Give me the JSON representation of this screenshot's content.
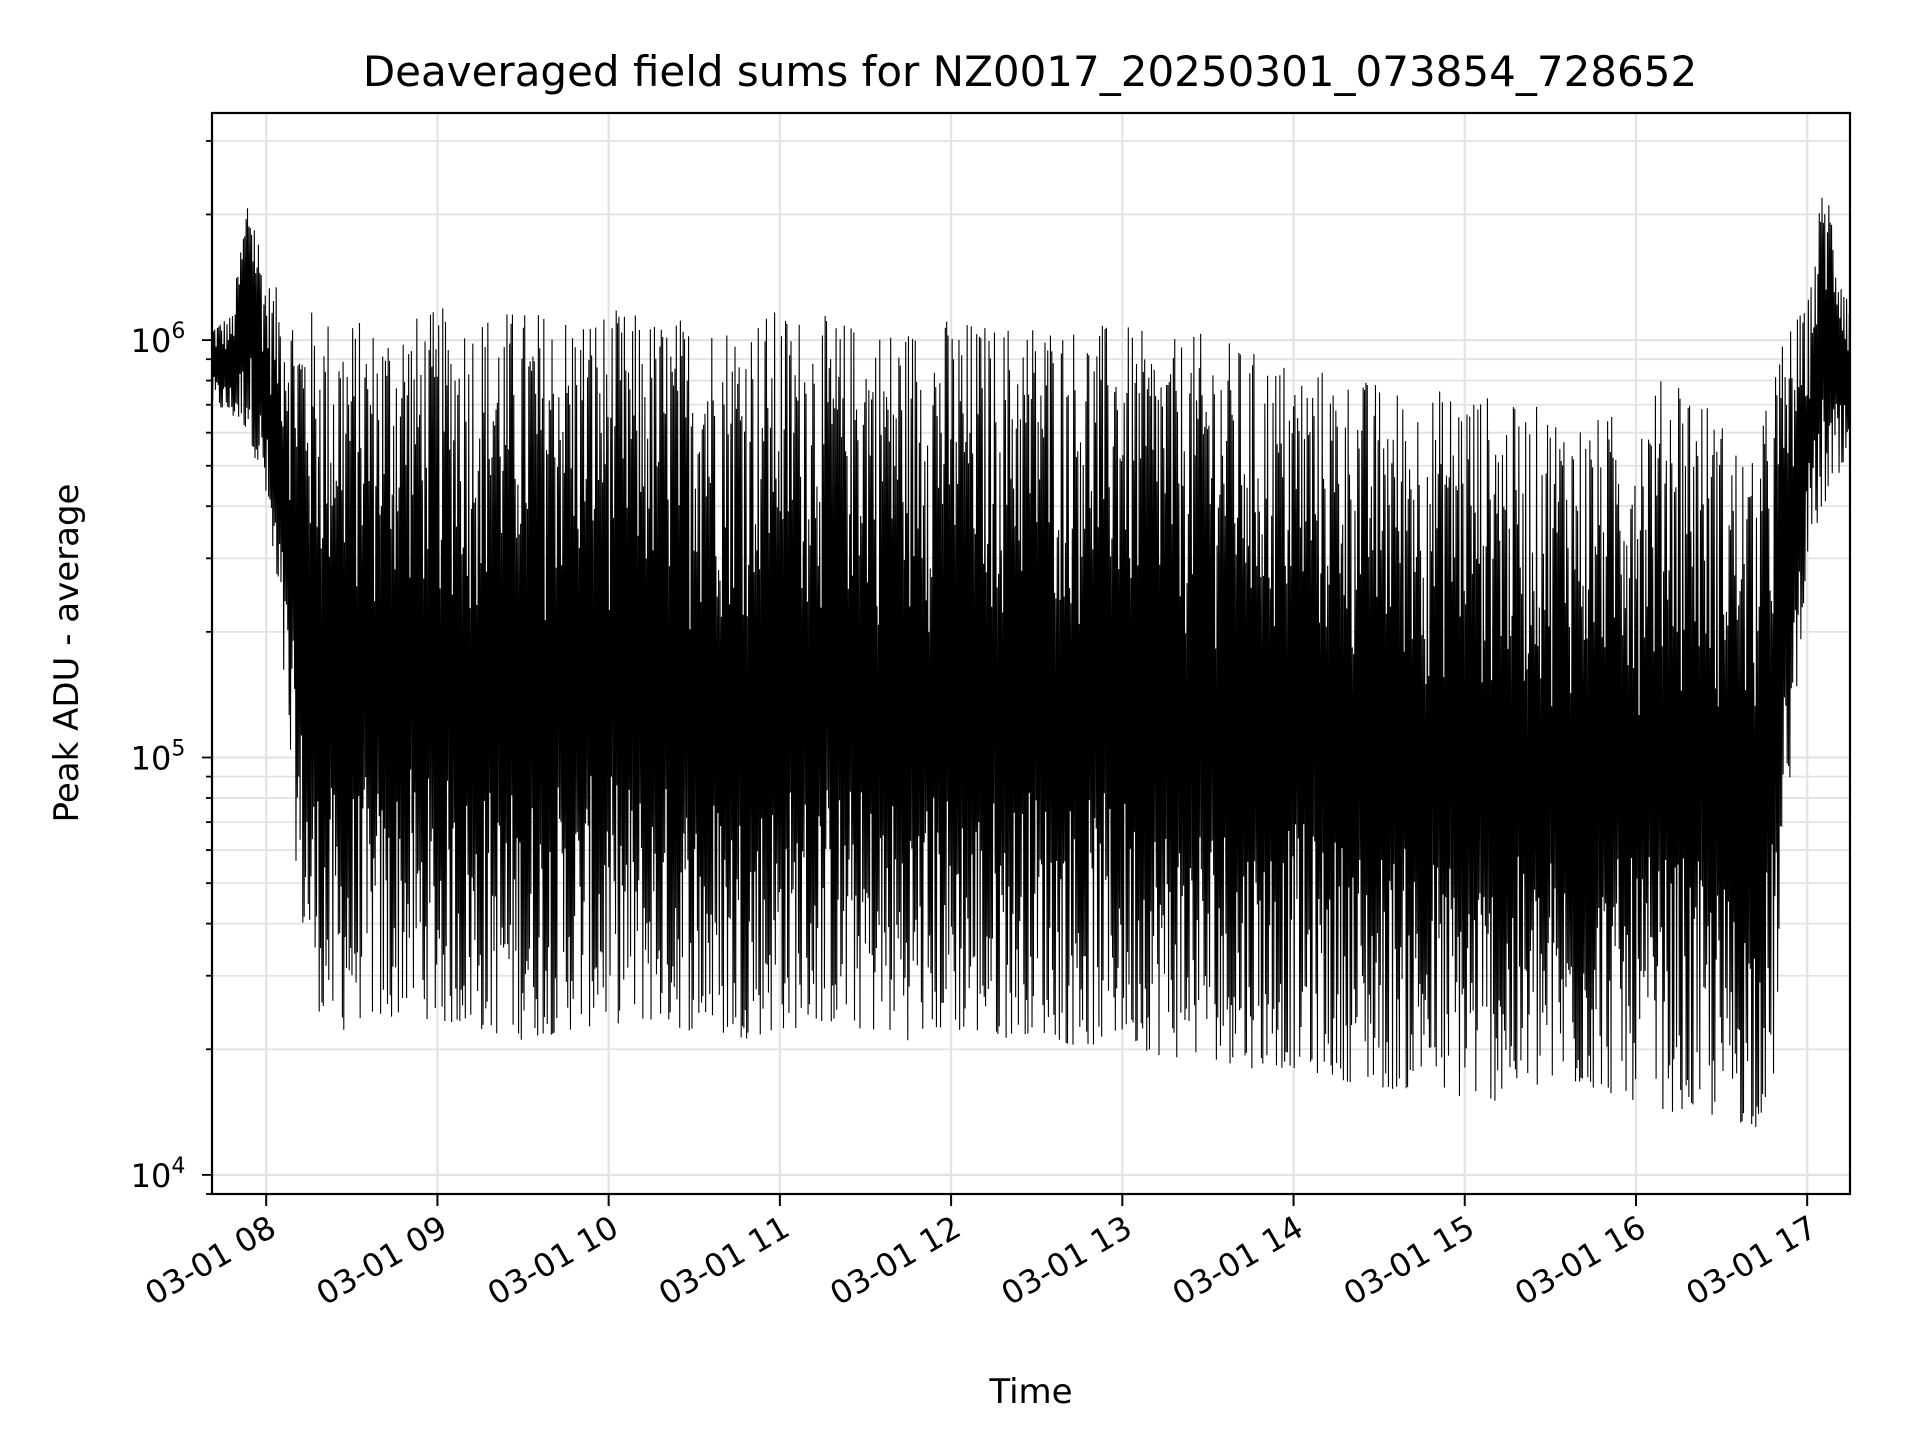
{
  "chart_data": {
    "type": "line",
    "title": "Deaveraged field sums for NZ0017_20250301_073854_728652",
    "xlabel": "Time",
    "ylabel": "Peak ADU - average",
    "yscale": "log",
    "ylim": [
      9000,
      3500000
    ],
    "xlim": [
      "2025-03-01 07:41",
      "2025-03-01 17:15"
    ],
    "grid": true,
    "line_color": "#000000",
    "x_ticks": [
      {
        "value": "2025-03-01 08:00",
        "label": "03-01 08"
      },
      {
        "value": "2025-03-01 09:00",
        "label": "03-01 09"
      },
      {
        "value": "2025-03-01 10:00",
        "label": "03-01 10"
      },
      {
        "value": "2025-03-01 11:00",
        "label": "03-01 11"
      },
      {
        "value": "2025-03-01 12:00",
        "label": "03-01 12"
      },
      {
        "value": "2025-03-01 13:00",
        "label": "03-01 13"
      },
      {
        "value": "2025-03-01 14:00",
        "label": "03-01 14"
      },
      {
        "value": "2025-03-01 15:00",
        "label": "03-01 15"
      },
      {
        "value": "2025-03-01 16:00",
        "label": "03-01 16"
      },
      {
        "value": "2025-03-01 17:00",
        "label": "03-01 17"
      }
    ],
    "y_ticks": [
      {
        "value": 10000,
        "base": "10",
        "exp": "4"
      },
      {
        "value": 100000,
        "base": "10",
        "exp": "5"
      },
      {
        "value": 1000000,
        "base": "10",
        "exp": "6"
      }
    ],
    "series": [
      {
        "x": [
          "2025-03-01 07:41",
          "2025-03-01 07:48",
          "2025-03-01 07:54",
          "2025-03-01 08:00",
          "2025-03-01 08:06",
          "2025-03-01 08:12",
          "2025-03-01 08:18",
          "2025-03-01 08:24",
          "2025-03-01 08:30",
          "2025-03-01 08:36",
          "2025-03-01 08:42",
          "2025-03-01 08:48",
          "2025-03-01 08:54",
          "2025-03-01 09:00",
          "2025-03-01 09:15",
          "2025-03-01 09:30",
          "2025-03-01 09:45",
          "2025-03-01 10:00",
          "2025-03-01 10:15",
          "2025-03-01 10:30",
          "2025-03-01 10:45",
          "2025-03-01 11:00",
          "2025-03-01 11:15",
          "2025-03-01 11:30",
          "2025-03-01 11:45",
          "2025-03-01 12:00",
          "2025-03-01 12:15",
          "2025-03-01 12:30",
          "2025-03-01 12:45",
          "2025-03-01 13:00",
          "2025-03-01 13:15",
          "2025-03-01 13:30",
          "2025-03-01 13:45",
          "2025-03-01 14:00",
          "2025-03-01 14:15",
          "2025-03-01 14:30",
          "2025-03-01 14:45",
          "2025-03-01 15:00",
          "2025-03-01 15:15",
          "2025-03-01 15:30",
          "2025-03-01 15:45",
          "2025-03-01 16:00",
          "2025-03-01 16:15",
          "2025-03-01 16:30",
          "2025-03-01 16:42",
          "2025-03-01 16:48",
          "2025-03-01 16:54",
          "2025-03-01 17:00",
          "2025-03-01 17:06",
          "2025-03-01 17:12",
          "2025-03-01 17:15"
        ],
        "y_low": [
          700000,
          650000,
          600000,
          400000,
          150000,
          40000,
          25000,
          21000,
          23000,
          24000,
          22000,
          25000,
          24000,
          23000,
          22000,
          21000,
          22000,
          23000,
          23000,
          22000,
          21000,
          22000,
          23000,
          22000,
          21000,
          22000,
          21000,
          22000,
          20000,
          21000,
          19000,
          19000,
          18000,
          18000,
          17000,
          16000,
          16000,
          15000,
          15000,
          16000,
          16000,
          15000,
          14000,
          13500,
          13000,
          16000,
          90000,
          300000,
          400000,
          450000,
          500000
        ],
        "y_high": [
          1100000,
          1150000,
          2500000,
          1400000,
          1300000,
          1200000,
          1200000,
          1150000,
          1150000,
          1100000,
          1150000,
          1200000,
          1150000,
          1200000,
          1200000,
          1200000,
          1200000,
          1200000,
          1150000,
          1150000,
          1150000,
          1200000,
          1150000,
          1100000,
          1100000,
          1150000,
          1100000,
          1150000,
          1100000,
          1100000,
          1000000,
          1050000,
          950000,
          900000,
          850000,
          800000,
          750000,
          800000,
          700000,
          700000,
          650000,
          700000,
          900000,
          650000,
          500000,
          900000,
          1100000,
          1200000,
          2600000,
          1600000,
          1300000
        ]
      }
    ]
  }
}
